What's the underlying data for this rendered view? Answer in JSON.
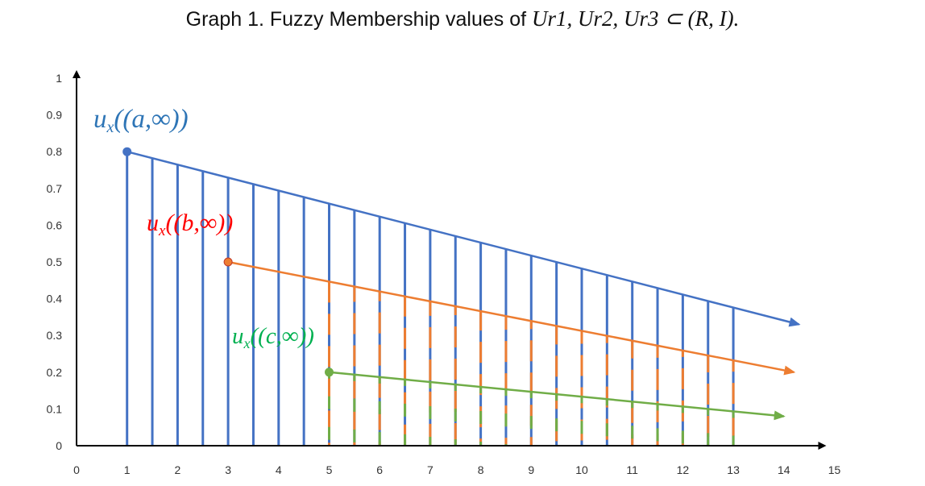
{
  "chart_data": {
    "type": "line",
    "title": "Graph 1. Fuzzy Membership values of U_r1, U_r2, U_r3 ⊂ (R, I).",
    "title_parts": {
      "prefix": "Graph 1. Fuzzy Membership values of ",
      "math": "Ur1, Ur2, Ur3 ⊂ (R, I)."
    },
    "xlabel": "",
    "ylabel": "",
    "xlim": [
      0,
      15
    ],
    "ylim": [
      0,
      1
    ],
    "x_ticks": [
      "0",
      "1",
      "2",
      "3",
      "4",
      "5",
      "6",
      "7",
      "8",
      "9",
      "10",
      "11",
      "12",
      "13",
      "14",
      "15"
    ],
    "y_ticks": [
      "0",
      "0.1",
      "0.2",
      "0.3",
      "0.4",
      "0.5",
      "0.6",
      "0.7",
      "0.8",
      "0.9",
      "1"
    ],
    "grid": false,
    "series": [
      {
        "name": "u_x((a,∞))",
        "label_text": "ux((a,∞))",
        "color": "#4472C4",
        "start": [
          1,
          0.8
        ],
        "end": [
          14.3,
          0.33
        ],
        "drop_lines_x": [
          1,
          1.5,
          2,
          2.5,
          3,
          3.5,
          4,
          4.5,
          5,
          5.5,
          6,
          6.5,
          7,
          7.5,
          8,
          8.5,
          9,
          9.5,
          10,
          10.5,
          11,
          11.5,
          12,
          12.5,
          13
        ],
        "drop_style": "solid"
      },
      {
        "name": "u_x((b,∞))",
        "label_text": "ux((b,∞))",
        "color": "#ED7D31",
        "start": [
          3,
          0.5
        ],
        "end": [
          14.2,
          0.2
        ],
        "drop_lines_x": [
          5,
          5.5,
          6,
          6.5,
          7,
          7.5,
          8,
          8.5,
          9,
          9.5,
          10,
          10.5,
          11,
          11.5,
          12,
          12.5,
          13
        ],
        "drop_style": "dashed"
      },
      {
        "name": "u_x((c,∞))",
        "label_text": "ux((c,∞))",
        "color": "#70AD47",
        "start": [
          5,
          0.2
        ],
        "end": [
          14,
          0.08
        ],
        "drop_lines_x": [
          5,
          5.5,
          6,
          6.5,
          7,
          7.5,
          8,
          8.5,
          9,
          9.5,
          10,
          10.5,
          11,
          11.5,
          12,
          12.5,
          13
        ],
        "drop_style": "dashed"
      }
    ]
  }
}
